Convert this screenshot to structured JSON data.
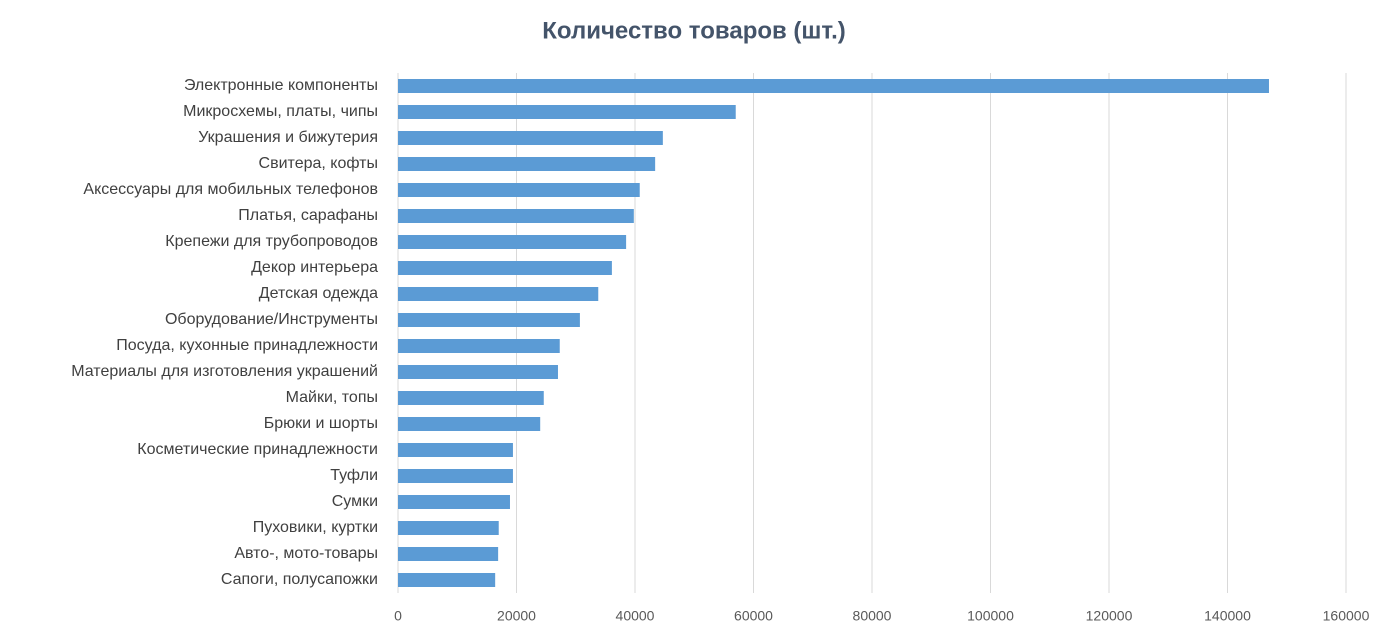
{
  "chart_data": {
    "type": "hbar",
    "title": "Количество товаров (шт.)",
    "categories": [
      "Электронные компоненты",
      "Микросхемы, платы, чипы",
      "Украшения и бижутерия",
      "Свитера, кофты",
      "Аксессуары для мобильных телефонов",
      "Платья, сарафаны",
      "Крепежи для трубопроводов",
      "Декор интерьера",
      "Детская одежда",
      "Оборудование/Инструменты",
      "Посуда, кухонные принадлежности",
      "Материалы для изготовления украшений",
      "Майки, топы",
      "Брюки и шорты",
      "Косметические принадлежности",
      "Туфли",
      "Сумки",
      "Пуховики, куртки",
      "Авто-, мото-товары",
      "Сапоги, полусапожки"
    ],
    "values": [
      147000,
      57000,
      44700,
      43400,
      40800,
      39800,
      38500,
      36100,
      33800,
      30700,
      27300,
      27000,
      24600,
      24000,
      19400,
      19400,
      18900,
      17000,
      16900,
      16400
    ],
    "color": "#5b9bd5",
    "xlim": [
      0,
      160000
    ],
    "xticks": [
      0,
      20000,
      40000,
      60000,
      80000,
      100000,
      120000,
      140000,
      160000
    ],
    "grid": true
  }
}
